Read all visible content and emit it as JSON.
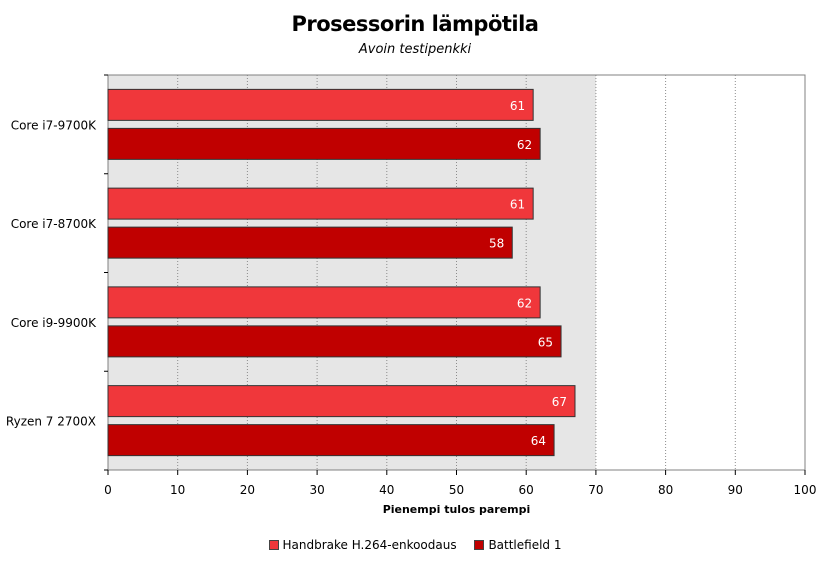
{
  "chart_data": {
    "type": "bar",
    "orientation": "horizontal",
    "title": "Prosessorin lämpötila",
    "subtitle": "Avoin testipenkki",
    "xlabel": "Pienempi tulos parempi",
    "ylabel": "",
    "categories": [
      "Core i7-9700K",
      "Core i7-8700K",
      "Core i9-9900K",
      "Ryzen 7 2700X"
    ],
    "series": [
      {
        "name": "Handbrake H.264-enkoodaus",
        "values": [
          61,
          61,
          62,
          67
        ],
        "color": "#f0373b"
      },
      {
        "name": "Battlefield 1",
        "values": [
          62,
          58,
          65,
          64
        ],
        "color": "#c00000"
      }
    ],
    "xlim": [
      0,
      100
    ],
    "xticks": [
      0,
      10,
      20,
      30,
      40,
      50,
      60,
      70,
      80,
      90,
      100
    ],
    "grid": true,
    "legend_position": "bottom",
    "plot_background": "#e6e6e6"
  }
}
